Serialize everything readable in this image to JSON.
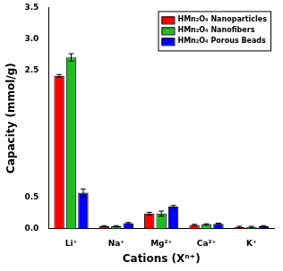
{
  "chart_data": {
    "type": "bar",
    "x_label": "Cations (Xⁿ⁺)",
    "y_label": "Capacity (mmol/g)",
    "categories": [
      "Li⁺",
      "Na⁺",
      "Mg²⁺",
      "Ca²⁺",
      "K⁺"
    ],
    "series": [
      {
        "name": "HMn₂O₄ Nanoparticles",
        "color": "#ff0000",
        "values": [
          2.42,
          0.04,
          0.24,
          0.06,
          0.03
        ],
        "errors": [
          0.02,
          0.01,
          0.02,
          0.01,
          0.01
        ]
      },
      {
        "name": "HMn₂O₄ Nanofibers",
        "color": "#22bb22",
        "values": [
          2.71,
          0.04,
          0.24,
          0.07,
          0.03
        ],
        "errors": [
          0.06,
          0.01,
          0.04,
          0.01,
          0.01
        ]
      },
      {
        "name": "HMn₂O₄ Porous Beads",
        "color": "#0000ff",
        "values": [
          0.57,
          0.09,
          0.35,
          0.08,
          0.04
        ],
        "errors": [
          0.06,
          0.01,
          0.02,
          0.01,
          0.01
        ]
      }
    ],
    "ylim": [
      0,
      3.5
    ],
    "yticks": [
      {
        "value": 0,
        "label": "0.0"
      },
      {
        "value": 0.5,
        "label": "0.5"
      },
      {
        "value": 2.5,
        "label": "2.5"
      },
      {
        "value": 3,
        "label": "3.0"
      },
      {
        "value": 3.5,
        "label": "3.5"
      }
    ],
    "grid": false,
    "legend": "upper right"
  }
}
